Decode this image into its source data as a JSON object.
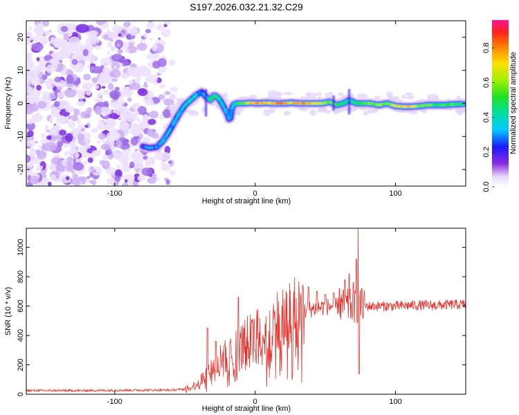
{
  "page_title": "S197.2026.032.21.32.C29",
  "chart_data": [
    {
      "type": "heatmap",
      "title": "S197.2026.032.21.32.C29",
      "xlabel": "Height of straight line (km)",
      "ylabel": "Frequency (Hz)",
      "xlim": [
        -163,
        150
      ],
      "ylim": [
        -25,
        25
      ],
      "x_ticks": [
        -100,
        0,
        100
      ],
      "x_tick_labels": [
        "-100",
        "0",
        "100"
      ],
      "y_ticks": [
        -20,
        -10,
        0,
        10,
        20
      ],
      "y_tick_labels": [
        "-20",
        "-10",
        "0",
        "10",
        "20"
      ],
      "colorbar": {
        "label": "Normalized spectral amplitude",
        "range": [
          0,
          0.96
        ],
        "ticks": [
          0.0,
          0.2,
          0.4,
          0.6,
          0.8
        ],
        "tick_labels": [
          "0.0",
          "0.2",
          "0.4",
          "0.6",
          "0.8"
        ]
      },
      "noise_region_x": [
        -163,
        -65
      ],
      "ridge": [
        [
          -80,
          -13.0,
          0.25
        ],
        [
          -75,
          -13.5,
          0.3
        ],
        [
          -70,
          -13.2,
          0.3
        ],
        [
          -66,
          -11.5,
          0.35
        ],
        [
          -62,
          -9.0,
          0.35
        ],
        [
          -58,
          -6.0,
          0.35
        ],
        [
          -54,
          -3.0,
          0.35
        ],
        [
          -50,
          -0.5,
          0.4
        ],
        [
          -46,
          1.0,
          0.4
        ],
        [
          -42,
          2.5,
          0.4
        ],
        [
          -38,
          3.5,
          0.3
        ],
        [
          -35,
          2.0,
          0.35
        ],
        [
          -32,
          1.0,
          0.45
        ],
        [
          -29,
          2.5,
          0.6
        ],
        [
          -26,
          1.5,
          0.45
        ],
        [
          -23,
          -0.5,
          0.35
        ],
        [
          -20,
          -3.0,
          0.35
        ],
        [
          -18,
          -5.5,
          0.35
        ],
        [
          -16,
          -0.5,
          0.3
        ],
        [
          -13,
          0.0,
          0.45
        ],
        [
          -8,
          0.0,
          0.6
        ],
        [
          -3,
          0.2,
          0.75
        ],
        [
          2,
          0.0,
          0.85
        ],
        [
          8,
          0.2,
          0.75
        ],
        [
          14,
          0.0,
          0.8
        ],
        [
          20,
          0.0,
          0.9
        ],
        [
          26,
          0.2,
          0.7
        ],
        [
          31,
          0.0,
          0.85
        ],
        [
          37,
          0.0,
          0.8
        ],
        [
          43,
          0.0,
          0.75
        ],
        [
          48,
          0.0,
          0.7
        ],
        [
          53,
          0.5,
          0.55
        ],
        [
          58,
          -0.5,
          0.6
        ],
        [
          63,
          0.0,
          0.5
        ],
        [
          67,
          1.0,
          0.45
        ],
        [
          72,
          0.0,
          0.55
        ],
        [
          77,
          0.0,
          0.55
        ],
        [
          82,
          0.0,
          0.6
        ],
        [
          88,
          -0.5,
          0.65
        ],
        [
          94,
          0.0,
          0.6
        ],
        [
          100,
          -0.8,
          0.7
        ],
        [
          106,
          -1.0,
          0.75
        ],
        [
          111,
          -1.0,
          0.8
        ],
        [
          117,
          -0.8,
          0.6
        ],
        [
          123,
          -0.5,
          0.6
        ],
        [
          129,
          -0.5,
          0.5
        ],
        [
          135,
          -0.5,
          0.55
        ],
        [
          141,
          -0.3,
          0.55
        ],
        [
          147,
          -0.2,
          0.5
        ]
      ]
    },
    {
      "type": "line",
      "xlabel": "Height of straight line (km)",
      "ylabel": "SNR (10 * v/v)",
      "xlim": [
        -163,
        150
      ],
      "ylim": [
        0,
        1130
      ],
      "x_ticks": [
        -100,
        0,
        100
      ],
      "x_tick_labels": [
        "-100",
        "0",
        "100"
      ],
      "y_ticks": [
        0,
        200,
        400,
        600,
        800,
        1000
      ],
      "y_tick_labels": [
        "0",
        "200",
        "400",
        "600",
        "800",
        "1000"
      ],
      "series": [
        {
          "name": "SNR",
          "color": "#e8302a",
          "envelope": [
            [
              -163,
              25
            ],
            [
              -120,
              25
            ],
            [
              -90,
              28
            ],
            [
              -60,
              28
            ],
            [
              -50,
              35
            ],
            [
              -45,
              50
            ],
            [
              -40,
              80
            ],
            [
              -35,
              130
            ],
            [
              -30,
              180
            ],
            [
              -25,
              220
            ],
            [
              -20,
              250
            ],
            [
              -15,
              290
            ],
            [
              -10,
              320
            ],
            [
              -5,
              350
            ],
            [
              0,
              380
            ],
            [
              5,
              410
            ],
            [
              10,
              440
            ],
            [
              15,
              470
            ],
            [
              20,
              500
            ],
            [
              25,
              520
            ],
            [
              30,
              545
            ],
            [
              35,
              565
            ],
            [
              40,
              580
            ],
            [
              45,
              590
            ],
            [
              50,
              595
            ],
            [
              55,
              600
            ],
            [
              60,
              600
            ],
            [
              65,
              600
            ],
            [
              70,
              600
            ],
            [
              75,
              600
            ],
            [
              80,
              600
            ],
            [
              90,
              600
            ],
            [
              100,
              600
            ],
            [
              110,
              605
            ],
            [
              120,
              605
            ],
            [
              130,
              605
            ],
            [
              140,
              610
            ],
            [
              150,
              610
            ]
          ],
          "spikes": [
            [
              -34,
              450
            ],
            [
              -28,
              360
            ],
            [
              -22,
              330
            ],
            [
              -18,
              350
            ],
            [
              -12,
              660
            ],
            [
              -8,
              450
            ],
            [
              38,
              730
            ],
            [
              44,
              700
            ],
            [
              50,
              680
            ],
            [
              56,
              690
            ],
            [
              60,
              720
            ],
            [
              64,
              780
            ],
            [
              67,
              820
            ],
            [
              70,
              760
            ],
            [
              72,
              920
            ],
            [
              73.5,
              1130
            ],
            [
              74,
              140
            ],
            [
              76,
              720
            ]
          ]
        }
      ]
    }
  ]
}
